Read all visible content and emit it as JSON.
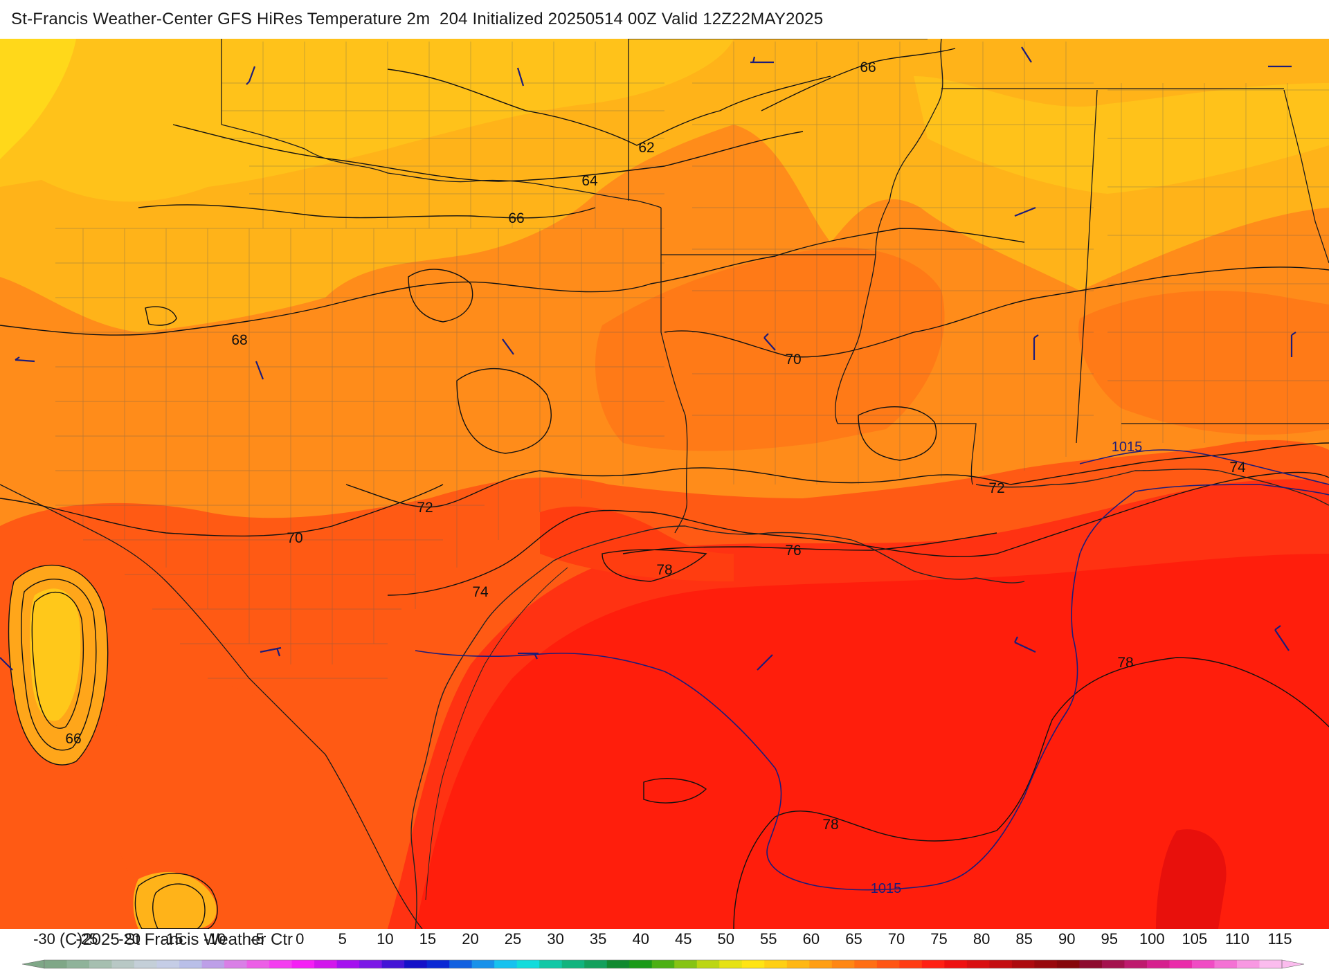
{
  "title": "St-Francis Weather-Center GFS HiRes Temperature 2m  204 Initialized 20250514 00Z Valid 12Z22MAY2025",
  "copyright": "(C)2025 St Francis Weather Ctr",
  "map": {
    "region": "Texas / Louisiana / Mississippi / Alabama Gulf Coast",
    "isotherm_labels": [
      "62",
      "64",
      "66",
      "66",
      "66",
      "68",
      "70",
      "70",
      "72",
      "72",
      "74",
      "74",
      "76",
      "78",
      "78",
      "78"
    ],
    "isobar_labels": [
      "1015",
      "1015"
    ],
    "colors": {
      "gulf_deep": "#ff1e0c",
      "coastal": "#ff3d10",
      "inland_orange": "#ff8c1a",
      "north_amber": "#ffb319",
      "north_yellow": "#ffd21a",
      "contour": "#111111",
      "isobar": "#1c1c7a",
      "state_border": "#1a1a1a",
      "county_line": "#555555"
    }
  },
  "colorbar": {
    "ticks": [
      "-30",
      "-25",
      "-20",
      "-15",
      "-10",
      "-5",
      "0",
      "5",
      "10",
      "15",
      "20",
      "25",
      "30",
      "35",
      "40",
      "45",
      "50",
      "55",
      "60",
      "65",
      "70",
      "75",
      "80",
      "85",
      "90",
      "95",
      "100",
      "105",
      "110",
      "115"
    ],
    "colors": [
      "#7fa787",
      "#8fb39a",
      "#a6bfb0",
      "#b8c8c5",
      "#c4cfd8",
      "#c5cde6",
      "#b9bfe8",
      "#bd9fe8",
      "#d97fe6",
      "#ec5ee6",
      "#f43ef0",
      "#f51ff5",
      "#d216ec",
      "#a510ef",
      "#7b18e6",
      "#4414d6",
      "#1410c8",
      "#0a28d4",
      "#1160e0",
      "#1891ea",
      "#16c2ef",
      "#12dcdc",
      "#10c8a6",
      "#10b47e",
      "#12a05c",
      "#108a30",
      "#1a9a18",
      "#4cb014",
      "#86c414",
      "#bcd614",
      "#e6e214",
      "#ffe414",
      "#ffcf14",
      "#ffb714",
      "#ff9e14",
      "#ff8714",
      "#ff6e14",
      "#ff5514",
      "#ff3c14",
      "#ff2014",
      "#ee1010",
      "#d90e10",
      "#c40c10",
      "#ad0a0e",
      "#98080c",
      "#86060a",
      "#8d0a2e",
      "#a4124e",
      "#be1a6e",
      "#d6208e",
      "#ea2caa",
      "#f04cc4",
      "#f472d4",
      "#f898e2",
      "#fbbcee"
    ]
  }
}
